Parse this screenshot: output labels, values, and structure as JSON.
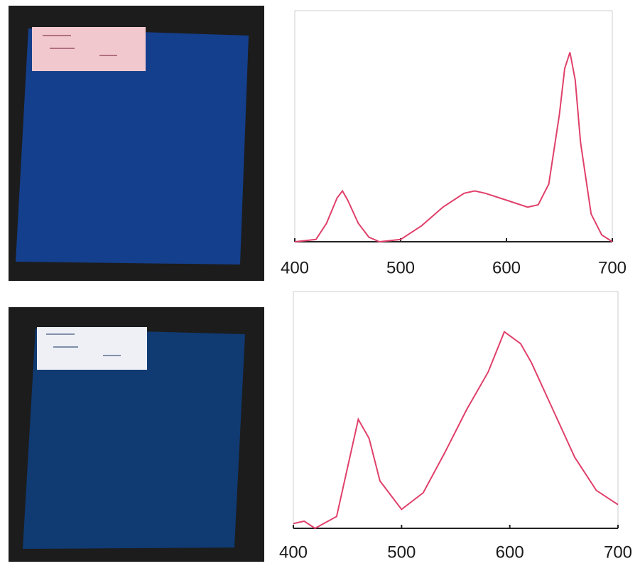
{
  "chart_data": [
    {
      "type": "line",
      "color": "#e0406a",
      "x": [
        400,
        420,
        430,
        440,
        445,
        450,
        460,
        470,
        480,
        500,
        520,
        540,
        560,
        570,
        580,
        600,
        620,
        630,
        640,
        650,
        655,
        660,
        665,
        670,
        680,
        690,
        700
      ],
      "values": [
        0,
        0.01,
        0.08,
        0.19,
        0.22,
        0.18,
        0.08,
        0.02,
        0,
        0.01,
        0.07,
        0.15,
        0.21,
        0.22,
        0.21,
        0.18,
        0.15,
        0.16,
        0.25,
        0.55,
        0.75,
        0.82,
        0.7,
        0.43,
        0.12,
        0.03,
        0
      ],
      "xlim": [
        400,
        700
      ],
      "xticks": [
        400,
        500,
        600,
        700
      ],
      "ylim": [
        0,
        1
      ]
    },
    {
      "type": "line",
      "color": "#e0406a",
      "x": [
        400,
        410,
        420,
        440,
        460,
        470,
        480,
        500,
        520,
        540,
        560,
        580,
        595,
        610,
        620,
        640,
        660,
        680,
        700
      ],
      "values": [
        0.02,
        0.03,
        0,
        0.05,
        0.46,
        0.38,
        0.2,
        0.08,
        0.15,
        0.32,
        0.5,
        0.66,
        0.83,
        0.78,
        0.7,
        0.5,
        0.3,
        0.16,
        0.1
      ],
      "xlim": [
        400,
        700
      ],
      "xticks": [
        400,
        500,
        600,
        700
      ],
      "ylim": [
        0,
        1
      ]
    }
  ]
}
